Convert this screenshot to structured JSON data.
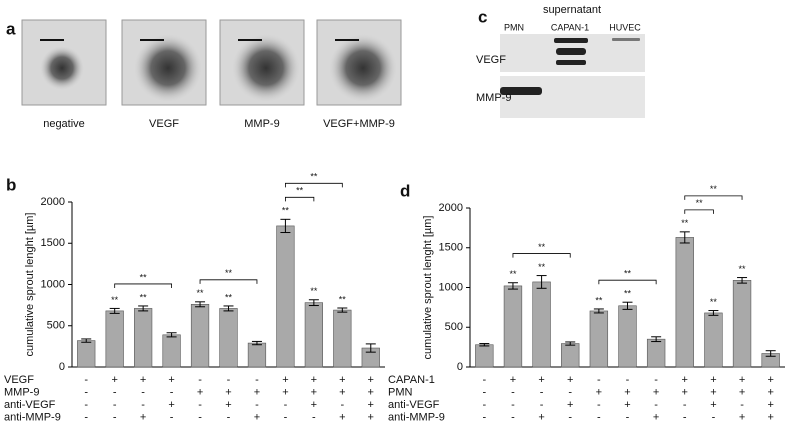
{
  "panel_a": {
    "label": "a",
    "images": [
      "negative",
      "VEGF",
      "MMP-9",
      "VEGF+MMP-9"
    ]
  },
  "panel_c": {
    "label": "c",
    "title": "supernatant",
    "lanes": [
      "PMN",
      "CAPAN-1",
      "HUVEC"
    ],
    "rows": [
      "VEGF",
      "MMP-9"
    ]
  },
  "chart_data": [
    {
      "type": "bar",
      "label": "b",
      "y_label": "cumulative sprout lenght [µm]",
      "ylim": [
        0,
        2000
      ],
      "yticks": [
        0,
        500,
        1000,
        1500,
        2000
      ],
      "color": "#a9a9a9",
      "values": [
        320,
        680,
        710,
        390,
        760,
        710,
        290,
        1710,
        780,
        690,
        230
      ],
      "errors": [
        20,
        30,
        30,
        25,
        30,
        30,
        20,
        80,
        35,
        25,
        50
      ],
      "significance": [
        null,
        "**",
        "**",
        null,
        "**",
        "**",
        null,
        "**",
        "**",
        "**",
        null
      ],
      "brackets": [
        {
          "from": 1,
          "to": 3,
          "label": "**"
        },
        {
          "from": 4,
          "to": 6,
          "label": "**"
        },
        {
          "from": 7,
          "to": 8,
          "label": "**"
        },
        {
          "from": 7,
          "to": 9,
          "label": "**"
        }
      ],
      "conditions": [
        {
          "name": "VEGF",
          "signs": [
            "-",
            "+",
            "+",
            "+",
            "-",
            "-",
            "-",
            "+",
            "+",
            "+",
            "+"
          ]
        },
        {
          "name": "MMP-9",
          "signs": [
            "-",
            "-",
            "-",
            "-",
            "+",
            "+",
            "+",
            "+",
            "+",
            "+",
            "+"
          ]
        },
        {
          "name": "anti-VEGF",
          "signs": [
            "-",
            "-",
            "-",
            "+",
            "-",
            "+",
            "-",
            "-",
            "+",
            "-",
            "+"
          ]
        },
        {
          "name": "anti-MMP-9",
          "signs": [
            "-",
            "-",
            "+",
            "-",
            "-",
            "-",
            "+",
            "-",
            "-",
            "+",
            "+"
          ]
        }
      ]
    },
    {
      "type": "bar",
      "label": "d",
      "y_label": "cumulative sprout lenght [µm]",
      "ylim": [
        0,
        2000
      ],
      "yticks": [
        0,
        500,
        1000,
        1500,
        2000
      ],
      "color": "#a9a9a9",
      "values": [
        280,
        1020,
        1070,
        295,
        705,
        770,
        350,
        1630,
        680,
        1090,
        170
      ],
      "errors": [
        15,
        40,
        80,
        20,
        25,
        45,
        30,
        70,
        30,
        35,
        35
      ],
      "significance": [
        null,
        "**",
        "**",
        null,
        "**",
        "**",
        null,
        "**",
        "**",
        "**",
        null
      ],
      "brackets": [
        {
          "from": 1,
          "to": 3,
          "label": "**"
        },
        {
          "from": 4,
          "to": 6,
          "label": "**"
        },
        {
          "from": 7,
          "to": 8,
          "label": "**"
        },
        {
          "from": 7,
          "to": 9,
          "label": "**"
        }
      ],
      "conditions": [
        {
          "name": "CAPAN-1",
          "signs": [
            "-",
            "+",
            "+",
            "+",
            "-",
            "-",
            "-",
            "+",
            "+",
            "+",
            "+"
          ]
        },
        {
          "name": "PMN",
          "signs": [
            "-",
            "-",
            "-",
            "-",
            "+",
            "+",
            "+",
            "+",
            "+",
            "+",
            "+"
          ]
        },
        {
          "name": "anti-VEGF",
          "signs": [
            "-",
            "-",
            "-",
            "+",
            "-",
            "+",
            "-",
            "-",
            "+",
            "-",
            "+"
          ]
        },
        {
          "name": "anti-MMP-9",
          "signs": [
            "-",
            "-",
            "+",
            "-",
            "-",
            "-",
            "+",
            "-",
            "-",
            "+",
            "+"
          ]
        }
      ]
    }
  ]
}
